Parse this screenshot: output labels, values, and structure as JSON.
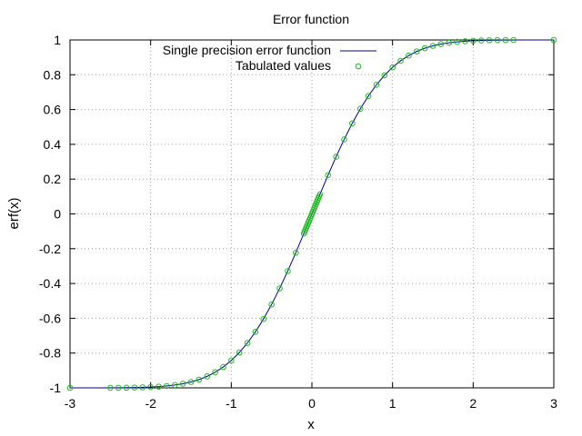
{
  "chart_data": {
    "type": "line",
    "title": "Error function",
    "xlabel": "x",
    "ylabel": "erf(x)",
    "xlim": [
      -3,
      3
    ],
    "ylim": [
      -1,
      1
    ],
    "grid": true,
    "legend_position": "top-center",
    "x_ticks": [
      "-3",
      "-2",
      "-1",
      "0",
      "1",
      "2",
      "3"
    ],
    "y_ticks": [
      "-1",
      "-0.8",
      "-0.6",
      "-0.4",
      "-0.2",
      "0",
      "0.2",
      "0.4",
      "0.6",
      "0.8",
      "1"
    ],
    "series": [
      {
        "name": "Single precision error function",
        "kind": "line",
        "color": "#00008b",
        "x": [
          -3.0,
          -2.8,
          -2.6,
          -2.4,
          -2.2,
          -2.0,
          -1.9,
          -1.8,
          -1.7,
          -1.6,
          -1.5,
          -1.4,
          -1.3,
          -1.2,
          -1.1,
          -1.0,
          -0.9,
          -0.8,
          -0.7,
          -0.6,
          -0.5,
          -0.4,
          -0.3,
          -0.2,
          -0.1,
          0.0,
          0.1,
          0.2,
          0.3,
          0.4,
          0.5,
          0.6,
          0.7,
          0.8,
          0.9,
          1.0,
          1.1,
          1.2,
          1.3,
          1.4,
          1.5,
          1.6,
          1.7,
          1.8,
          1.9,
          2.0,
          2.2,
          2.4,
          2.6,
          2.8,
          3.0
        ],
        "y": [
          -1.0,
          -0.9999,
          -0.9998,
          -0.9993,
          -0.9981,
          -0.9953,
          -0.9928,
          -0.9891,
          -0.9838,
          -0.9763,
          -0.9661,
          -0.9523,
          -0.934,
          -0.9103,
          -0.8802,
          -0.8427,
          -0.7969,
          -0.7421,
          -0.6778,
          -0.6039,
          -0.5205,
          -0.4284,
          -0.3286,
          -0.2227,
          -0.1125,
          0.0,
          0.1125,
          0.2227,
          0.3286,
          0.4284,
          0.5205,
          0.6039,
          0.6778,
          0.7421,
          0.7969,
          0.8427,
          0.8802,
          0.9103,
          0.934,
          0.9523,
          0.9661,
          0.9763,
          0.9838,
          0.9891,
          0.9928,
          0.9953,
          0.9981,
          0.9993,
          0.9998,
          0.9999,
          1.0
        ]
      },
      {
        "name": "Tabulated values",
        "kind": "scatter",
        "color": "#22bb22",
        "x": [
          -3.0,
          -2.5,
          -2.4,
          -2.3,
          -2.2,
          -2.1,
          -2.0,
          -1.9,
          -1.8,
          -1.7,
          -1.6,
          -1.5,
          -1.4,
          -1.3,
          -1.2,
          -1.1,
          -1.0,
          -0.9,
          -0.8,
          -0.7,
          -0.6,
          -0.5,
          -0.4,
          -0.3,
          -0.2,
          -0.1,
          -0.09,
          -0.08,
          -0.07,
          -0.06,
          -0.05,
          -0.04,
          -0.03,
          -0.02,
          -0.01,
          0.0,
          0.01,
          0.02,
          0.03,
          0.04,
          0.05,
          0.06,
          0.07,
          0.08,
          0.09,
          0.1,
          0.2,
          0.3,
          0.4,
          0.5,
          0.6,
          0.7,
          0.8,
          0.9,
          1.0,
          1.1,
          1.2,
          1.3,
          1.4,
          1.5,
          1.6,
          1.7,
          1.8,
          1.9,
          2.0,
          2.1,
          2.2,
          2.3,
          2.4,
          2.5,
          3.0
        ],
        "y": [
          -1.0,
          -0.9996,
          -0.9993,
          -0.9989,
          -0.9981,
          -0.997,
          -0.9953,
          -0.9928,
          -0.9891,
          -0.9838,
          -0.9763,
          -0.9661,
          -0.9523,
          -0.934,
          -0.9103,
          -0.8802,
          -0.8427,
          -0.7969,
          -0.7421,
          -0.6778,
          -0.6039,
          -0.5205,
          -0.4284,
          -0.3286,
          -0.2227,
          -0.1125,
          -0.1013,
          -0.0901,
          -0.0789,
          -0.0676,
          -0.0564,
          -0.0451,
          -0.0338,
          -0.0226,
          -0.0113,
          0.0,
          0.0113,
          0.0226,
          0.0338,
          0.0451,
          0.0564,
          0.0676,
          0.0789,
          0.0901,
          0.1013,
          0.1125,
          0.2227,
          0.3286,
          0.4284,
          0.5205,
          0.6039,
          0.6778,
          0.7421,
          0.7969,
          0.8427,
          0.8802,
          0.9103,
          0.934,
          0.9523,
          0.9661,
          0.9763,
          0.9838,
          0.9891,
          0.9928,
          0.9953,
          0.997,
          0.9981,
          0.9989,
          0.9993,
          0.9996,
          1.0
        ]
      }
    ]
  }
}
